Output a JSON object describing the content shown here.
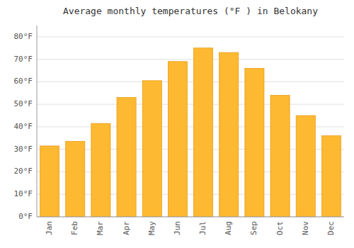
{
  "chart_data": {
    "type": "bar",
    "title": "Average monthly temperatures (°F ) in Belokany",
    "categories": [
      "Jan",
      "Feb",
      "Mar",
      "Apr",
      "May",
      "Jun",
      "Jul",
      "Aug",
      "Sep",
      "Oct",
      "Nov",
      "Dec"
    ],
    "values": [
      31.5,
      33.5,
      41.5,
      53,
      60.5,
      69,
      75,
      73,
      66,
      54,
      45,
      36
    ],
    "color": "#FDB931",
    "ylim": [
      0,
      85
    ],
    "yticks": [
      {
        "value": 0,
        "label": "0°F"
      },
      {
        "value": 10,
        "label": "10°F"
      },
      {
        "value": 20,
        "label": "20°F"
      },
      {
        "value": 30,
        "label": "30°F"
      },
      {
        "value": 40,
        "label": "40°F"
      },
      {
        "value": 50,
        "label": "50°F"
      },
      {
        "value": 60,
        "label": "60°F"
      },
      {
        "value": 70,
        "label": "70°F"
      },
      {
        "value": 80,
        "label": "80°F"
      }
    ],
    "grid": true
  }
}
